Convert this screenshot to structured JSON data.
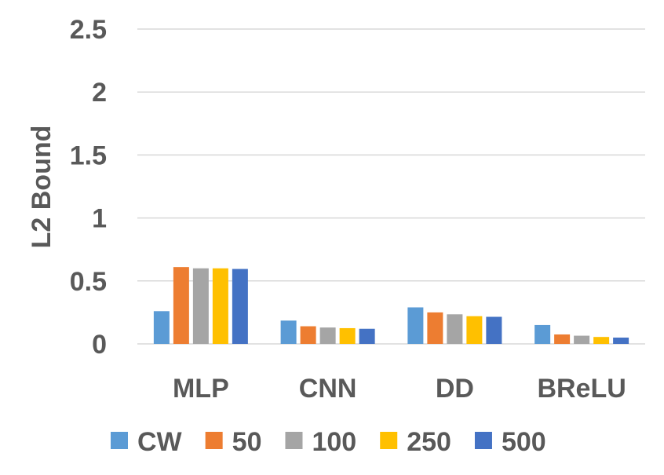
{
  "chart_data": {
    "type": "bar",
    "title": "",
    "xlabel": "",
    "ylabel": "L2 Bound",
    "ylim": [
      0,
      2.5
    ],
    "yticks": [
      "0",
      "0.5",
      "1",
      "1.5",
      "2",
      "2.5"
    ],
    "categories": [
      "MLP",
      "CNN",
      "DD",
      "BReLU"
    ],
    "series": [
      {
        "name": "CW",
        "color": "#5b9bd5",
        "values": [
          0.26,
          0.185,
          0.29,
          0.15
        ]
      },
      {
        "name": "50",
        "color": "#ed7d31",
        "values": [
          0.61,
          0.14,
          0.25,
          0.075
        ]
      },
      {
        "name": "100",
        "color": "#a5a5a5",
        "values": [
          0.6,
          0.13,
          0.235,
          0.065
        ]
      },
      {
        "name": "250",
        "color": "#ffc000",
        "values": [
          0.6,
          0.125,
          0.22,
          0.055
        ]
      },
      {
        "name": "500",
        "color": "#4472c4",
        "values": [
          0.595,
          0.12,
          0.215,
          0.05
        ]
      }
    ],
    "grid": true,
    "legend": "bottom"
  }
}
